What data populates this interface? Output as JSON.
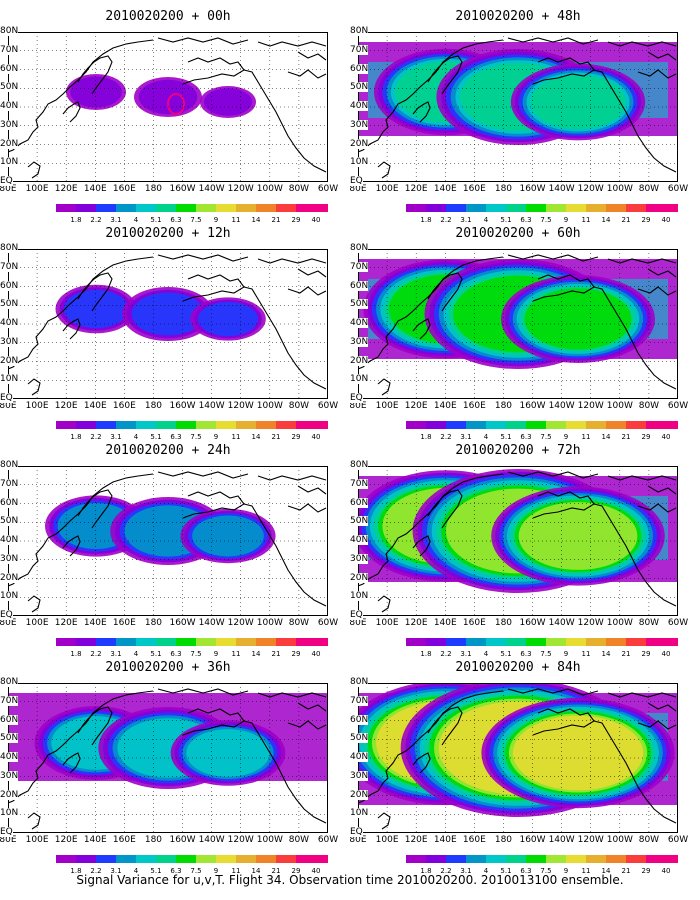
{
  "footer": "Signal Variance for u,v,T. Flight 34. Observation time 2010020200. 2010013100 ensemble.",
  "lon_labels": [
    "80E",
    "100E",
    "120E",
    "140E",
    "160E",
    "180",
    "160W",
    "140W",
    "120W",
    "100W",
    "80W",
    "60W"
  ],
  "lat_labels": [
    "80N",
    "70N",
    "60N",
    "50N",
    "40N",
    "30N",
    "20N",
    "10N",
    "EQ"
  ],
  "colorbar": {
    "labels": [
      "1.8",
      "2.2",
      "3.1",
      "4",
      "5.1",
      "6.3",
      "7.5",
      "9",
      "11",
      "14",
      "21",
      "29",
      "40"
    ],
    "colors": [
      "#a000c8",
      "#8200dc",
      "#1e3cff",
      "#0096c8",
      "#00c8c8",
      "#00d28c",
      "#00dc00",
      "#a0e632",
      "#e6dc32",
      "#e6af2d",
      "#f08228",
      "#fa3c3c",
      "#f00082"
    ]
  },
  "panels": [
    {
      "title": "2010020200 + 00h",
      "intensity": 0
    },
    {
      "title": "2010020200 + 12h",
      "intensity": 1
    },
    {
      "title": "2010020200 + 24h",
      "intensity": 2
    },
    {
      "title": "2010020200 + 36h",
      "intensity": 3
    },
    {
      "title": "2010020200 + 48h",
      "intensity": 4
    },
    {
      "title": "2010020200 + 60h",
      "intensity": 5
    },
    {
      "title": "2010020200 + 72h",
      "intensity": 6
    },
    {
      "title": "2010020200 + 84h",
      "intensity": 7
    }
  ]
}
